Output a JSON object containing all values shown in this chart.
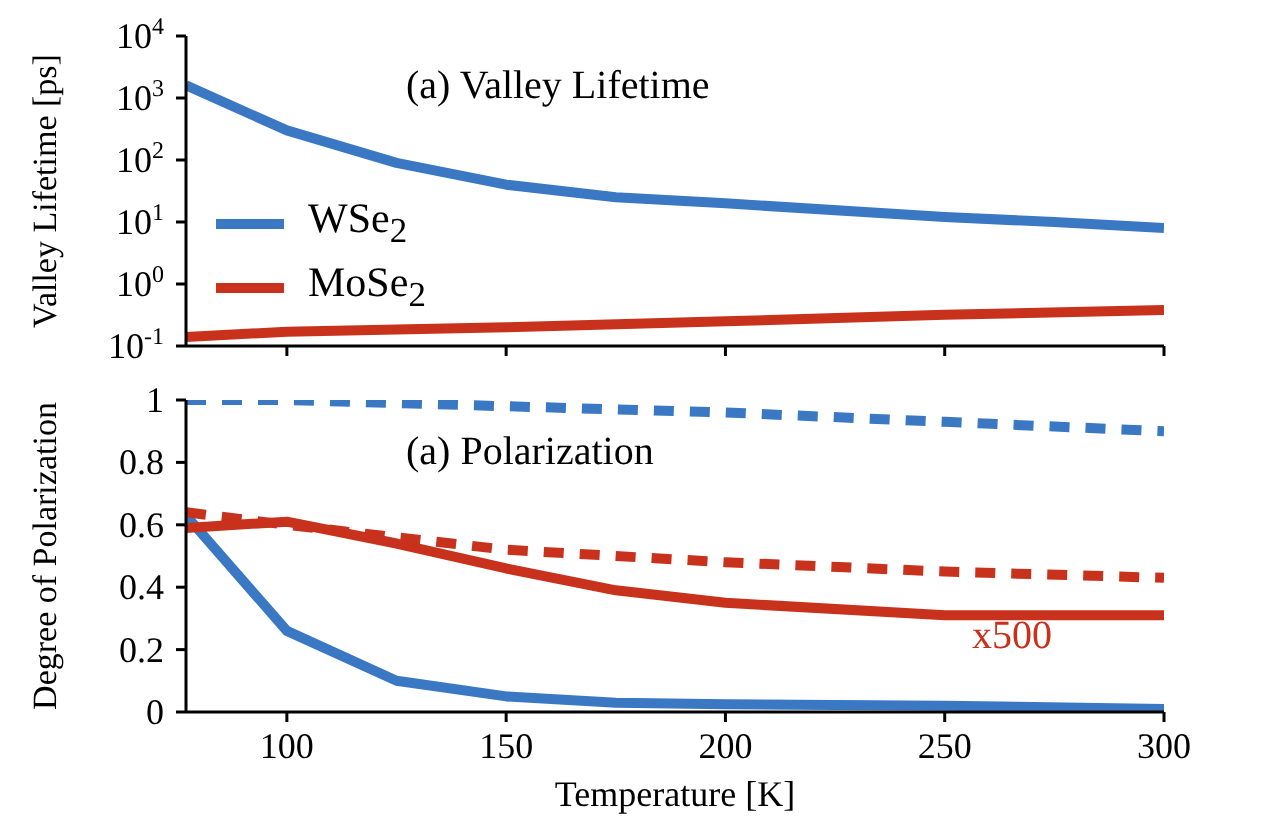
{
  "chart_data": [
    {
      "type": "line",
      "title": "(a) Valley Lifetime",
      "ylabel": "Valley Lifetime [ps]",
      "log": "y",
      "legend": "left",
      "tick_labels": "y",
      "line_style": "solid",
      "marker": "none",
      "xlim": [
        77,
        300
      ],
      "xticks": [
        {
          "value": 100,
          "label": null
        },
        {
          "value": 150,
          "label": null
        },
        {
          "value": 200,
          "label": null
        },
        {
          "value": 250,
          "label": null
        },
        {
          "value": 300,
          "label": null
        }
      ],
      "ylim": [
        0.1,
        10000
      ],
      "yticks": [
        {
          "value": 0.1,
          "label": "10$^{-1}$"
        },
        {
          "value": 1,
          "label": "10$^{0}$"
        },
        {
          "value": 10,
          "label": "10$^{1}$"
        },
        {
          "value": 100,
          "label": "10$^{2}$"
        },
        {
          "value": 1000,
          "label": "10$^{3}$"
        },
        {
          "value": 10000,
          "label": "10$^{4}$"
        }
      ],
      "series": [
        {
          "name": "WSe$_{2}$",
          "color": "#3a78c4",
          "x": [
            77,
            100,
            125,
            150,
            175,
            200,
            250,
            275,
            300
          ],
          "values": [
            1600,
            300,
            90,
            40,
            25,
            20,
            12,
            10,
            8
          ]
        },
        {
          "name": "MoSe$_{2}$",
          "color": "#c8321c",
          "x": [
            77,
            100,
            150,
            200,
            250,
            300
          ],
          "values": [
            0.14,
            0.17,
            0.2,
            0.25,
            0.32,
            0.38
          ]
        }
      ]
    },
    {
      "type": "line",
      "title": "(a) Polarization",
      "ylabel": "Degree of Polarization",
      "xlabel": "Temperature [K]",
      "marker": "none",
      "xlim": [
        77,
        300
      ],
      "xticks": [
        100,
        150,
        200,
        250,
        300
      ],
      "ylim": [
        0,
        1
      ],
      "yticks": [
        0,
        0.2,
        0.4,
        0.6,
        0.8,
        1
      ],
      "annotations": [
        "x500"
      ],
      "series": [
        {
          "color": "#3a78c4",
          "line_style": "solid",
          "x": [
            77,
            100,
            125,
            150,
            175,
            200,
            250,
            300
          ],
          "values": [
            0.63,
            0.26,
            0.1,
            0.05,
            0.03,
            0.025,
            0.02,
            0.01
          ]
        },
        {
          "color": "#c8321c",
          "line_style": "solid",
          "x": [
            77,
            100,
            125,
            150,
            175,
            200,
            250,
            300
          ],
          "values": [
            0.59,
            0.61,
            0.54,
            0.46,
            0.39,
            0.35,
            0.31,
            0.31
          ]
        },
        {
          "color": "#3a78c4",
          "line_style": "dashed",
          "x": [
            77,
            100,
            150,
            200,
            250,
            300
          ],
          "values": [
            1.0,
            1.0,
            0.98,
            0.96,
            0.93,
            0.9
          ]
        },
        {
          "color": "#c8321c",
          "line_style": "dashed",
          "x": [
            77,
            100,
            125,
            150,
            200,
            250,
            300
          ],
          "values": [
            0.64,
            0.6,
            0.56,
            0.52,
            0.48,
            0.45,
            0.43
          ]
        }
      ]
    }
  ]
}
